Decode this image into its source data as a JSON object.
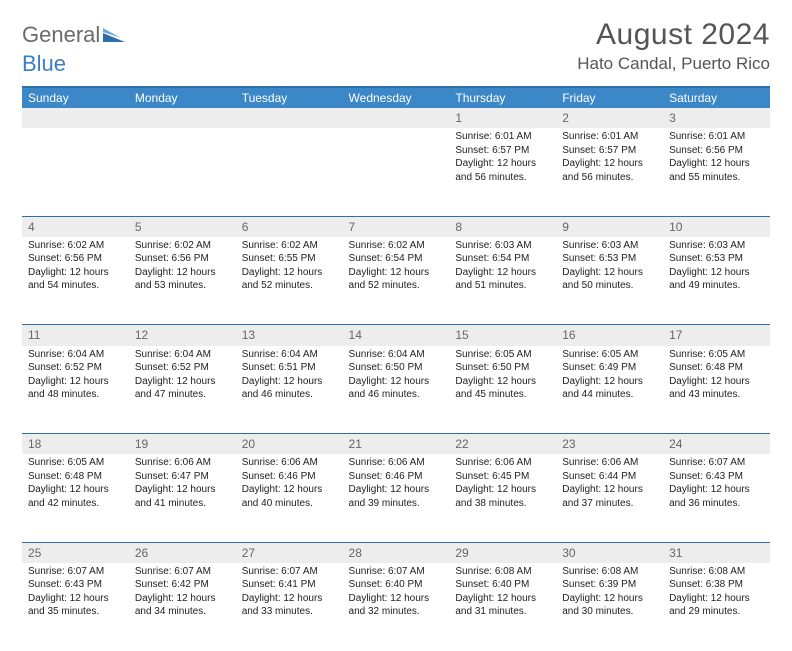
{
  "logo": {
    "general": "General",
    "blue": "Blue"
  },
  "header": {
    "month": "August 2024",
    "location": "Hato Candal, Puerto Rico"
  },
  "colors": {
    "headerBar": "#3b87c8",
    "ruleLine": "#2f6fa8",
    "dayNumBg": "#ededed",
    "textMuted": "#555"
  },
  "dayNames": [
    "Sunday",
    "Monday",
    "Tuesday",
    "Wednesday",
    "Thursday",
    "Friday",
    "Saturday"
  ],
  "weeks": [
    [
      null,
      null,
      null,
      null,
      {
        "n": "1",
        "sr": "Sunrise: 6:01 AM",
        "ss": "Sunset: 6:57 PM",
        "dl": "Daylight: 12 hours and 56 minutes."
      },
      {
        "n": "2",
        "sr": "Sunrise: 6:01 AM",
        "ss": "Sunset: 6:57 PM",
        "dl": "Daylight: 12 hours and 56 minutes."
      },
      {
        "n": "3",
        "sr": "Sunrise: 6:01 AM",
        "ss": "Sunset: 6:56 PM",
        "dl": "Daylight: 12 hours and 55 minutes."
      }
    ],
    [
      {
        "n": "4",
        "sr": "Sunrise: 6:02 AM",
        "ss": "Sunset: 6:56 PM",
        "dl": "Daylight: 12 hours and 54 minutes."
      },
      {
        "n": "5",
        "sr": "Sunrise: 6:02 AM",
        "ss": "Sunset: 6:56 PM",
        "dl": "Daylight: 12 hours and 53 minutes."
      },
      {
        "n": "6",
        "sr": "Sunrise: 6:02 AM",
        "ss": "Sunset: 6:55 PM",
        "dl": "Daylight: 12 hours and 52 minutes."
      },
      {
        "n": "7",
        "sr": "Sunrise: 6:02 AM",
        "ss": "Sunset: 6:54 PM",
        "dl": "Daylight: 12 hours and 52 minutes."
      },
      {
        "n": "8",
        "sr": "Sunrise: 6:03 AM",
        "ss": "Sunset: 6:54 PM",
        "dl": "Daylight: 12 hours and 51 minutes."
      },
      {
        "n": "9",
        "sr": "Sunrise: 6:03 AM",
        "ss": "Sunset: 6:53 PM",
        "dl": "Daylight: 12 hours and 50 minutes."
      },
      {
        "n": "10",
        "sr": "Sunrise: 6:03 AM",
        "ss": "Sunset: 6:53 PM",
        "dl": "Daylight: 12 hours and 49 minutes."
      }
    ],
    [
      {
        "n": "11",
        "sr": "Sunrise: 6:04 AM",
        "ss": "Sunset: 6:52 PM",
        "dl": "Daylight: 12 hours and 48 minutes."
      },
      {
        "n": "12",
        "sr": "Sunrise: 6:04 AM",
        "ss": "Sunset: 6:52 PM",
        "dl": "Daylight: 12 hours and 47 minutes."
      },
      {
        "n": "13",
        "sr": "Sunrise: 6:04 AM",
        "ss": "Sunset: 6:51 PM",
        "dl": "Daylight: 12 hours and 46 minutes."
      },
      {
        "n": "14",
        "sr": "Sunrise: 6:04 AM",
        "ss": "Sunset: 6:50 PM",
        "dl": "Daylight: 12 hours and 46 minutes."
      },
      {
        "n": "15",
        "sr": "Sunrise: 6:05 AM",
        "ss": "Sunset: 6:50 PM",
        "dl": "Daylight: 12 hours and 45 minutes."
      },
      {
        "n": "16",
        "sr": "Sunrise: 6:05 AM",
        "ss": "Sunset: 6:49 PM",
        "dl": "Daylight: 12 hours and 44 minutes."
      },
      {
        "n": "17",
        "sr": "Sunrise: 6:05 AM",
        "ss": "Sunset: 6:48 PM",
        "dl": "Daylight: 12 hours and 43 minutes."
      }
    ],
    [
      {
        "n": "18",
        "sr": "Sunrise: 6:05 AM",
        "ss": "Sunset: 6:48 PM",
        "dl": "Daylight: 12 hours and 42 minutes."
      },
      {
        "n": "19",
        "sr": "Sunrise: 6:06 AM",
        "ss": "Sunset: 6:47 PM",
        "dl": "Daylight: 12 hours and 41 minutes."
      },
      {
        "n": "20",
        "sr": "Sunrise: 6:06 AM",
        "ss": "Sunset: 6:46 PM",
        "dl": "Daylight: 12 hours and 40 minutes."
      },
      {
        "n": "21",
        "sr": "Sunrise: 6:06 AM",
        "ss": "Sunset: 6:46 PM",
        "dl": "Daylight: 12 hours and 39 minutes."
      },
      {
        "n": "22",
        "sr": "Sunrise: 6:06 AM",
        "ss": "Sunset: 6:45 PM",
        "dl": "Daylight: 12 hours and 38 minutes."
      },
      {
        "n": "23",
        "sr": "Sunrise: 6:06 AM",
        "ss": "Sunset: 6:44 PM",
        "dl": "Daylight: 12 hours and 37 minutes."
      },
      {
        "n": "24",
        "sr": "Sunrise: 6:07 AM",
        "ss": "Sunset: 6:43 PM",
        "dl": "Daylight: 12 hours and 36 minutes."
      }
    ],
    [
      {
        "n": "25",
        "sr": "Sunrise: 6:07 AM",
        "ss": "Sunset: 6:43 PM",
        "dl": "Daylight: 12 hours and 35 minutes."
      },
      {
        "n": "26",
        "sr": "Sunrise: 6:07 AM",
        "ss": "Sunset: 6:42 PM",
        "dl": "Daylight: 12 hours and 34 minutes."
      },
      {
        "n": "27",
        "sr": "Sunrise: 6:07 AM",
        "ss": "Sunset: 6:41 PM",
        "dl": "Daylight: 12 hours and 33 minutes."
      },
      {
        "n": "28",
        "sr": "Sunrise: 6:07 AM",
        "ss": "Sunset: 6:40 PM",
        "dl": "Daylight: 12 hours and 32 minutes."
      },
      {
        "n": "29",
        "sr": "Sunrise: 6:08 AM",
        "ss": "Sunset: 6:40 PM",
        "dl": "Daylight: 12 hours and 31 minutes."
      },
      {
        "n": "30",
        "sr": "Sunrise: 6:08 AM",
        "ss": "Sunset: 6:39 PM",
        "dl": "Daylight: 12 hours and 30 minutes."
      },
      {
        "n": "31",
        "sr": "Sunrise: 6:08 AM",
        "ss": "Sunset: 6:38 PM",
        "dl": "Daylight: 12 hours and 29 minutes."
      }
    ]
  ]
}
